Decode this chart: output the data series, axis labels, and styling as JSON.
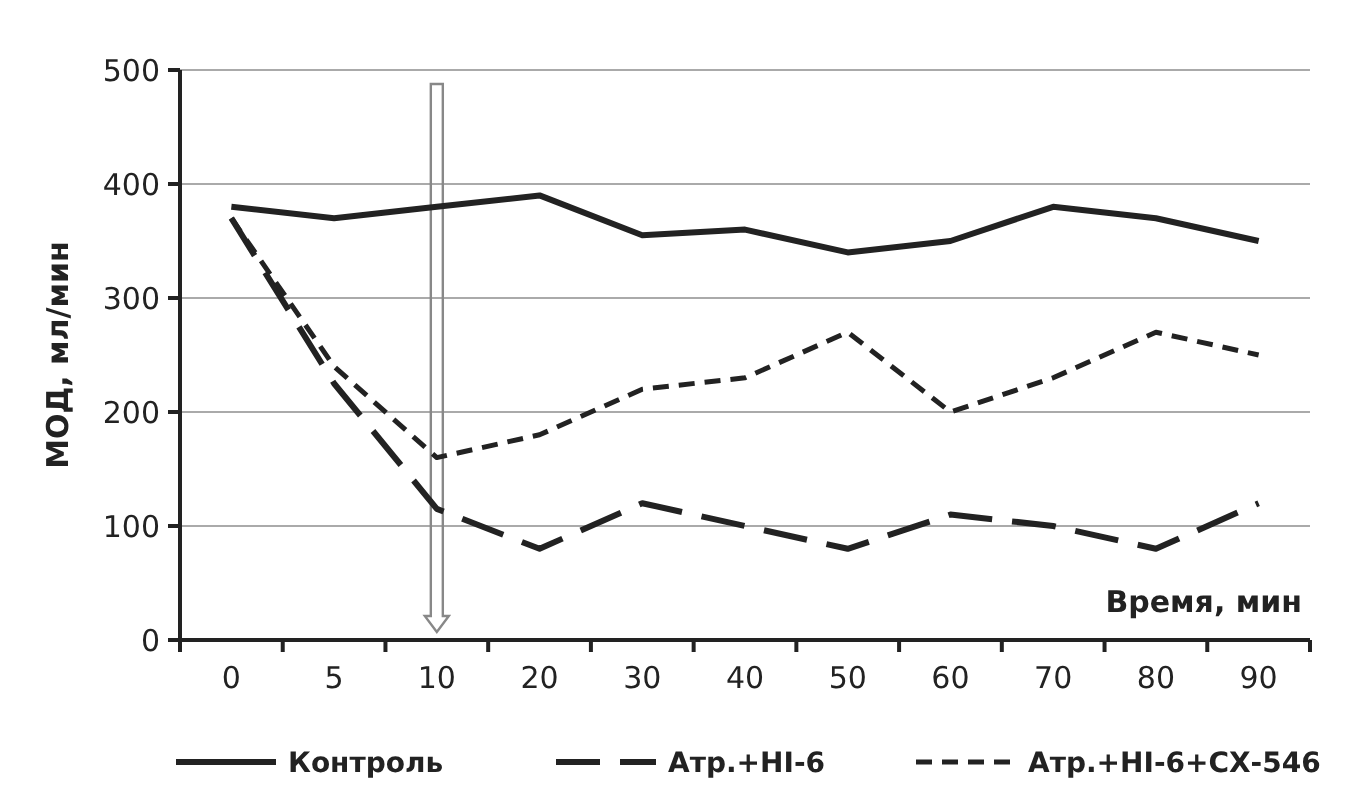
{
  "chart_data": {
    "type": "line",
    "ylabel": "МОД, мл/мин",
    "xlabel": "Время, мин",
    "categories": [
      "0",
      "5",
      "10",
      "20",
      "30",
      "40",
      "50",
      "60",
      "70",
      "80",
      "90"
    ],
    "series": [
      {
        "name": "Контроль",
        "color": "#222222",
        "line_style": "solid",
        "values": [
          380,
          370,
          380,
          390,
          355,
          360,
          340,
          350,
          380,
          370,
          350
        ]
      },
      {
        "name": "Атр.+HI-6",
        "color": "#222222",
        "line_style": "dashed",
        "values": [
          370,
          225,
          115,
          80,
          120,
          100,
          80,
          110,
          100,
          80,
          120
        ]
      },
      {
        "name": "Атр.+HI-6+СХ-546",
        "color": "#222222",
        "line_style": "dotted",
        "values": [
          370,
          240,
          160,
          180,
          220,
          230,
          270,
          200,
          230,
          270,
          250
        ]
      }
    ],
    "ylim": [
      0,
      500
    ],
    "yticks": [
      0,
      100,
      200,
      300,
      400,
      500
    ],
    "grid": "y",
    "legend": "bottom",
    "marker": "none"
  }
}
